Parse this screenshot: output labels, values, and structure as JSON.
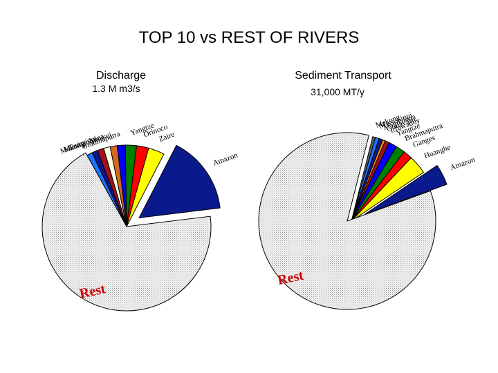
{
  "title": "TOP 10 vs REST OF RIVERS",
  "chart_data": [
    {
      "type": "pie",
      "title": "Discharge",
      "unit": "1.3 M m3/s",
      "slices": [
        {
          "label": "Amazon",
          "value": 15.5,
          "color": "#0a1a8c"
        },
        {
          "label": "Zaire",
          "value": 3.2,
          "color": "#ffff00"
        },
        {
          "label": "Orinoco",
          "value": 2.4,
          "color": "#ff0000"
        },
        {
          "label": "Yangtze",
          "value": 2.2,
          "color": "#008000"
        },
        {
          "label": "Brahmaputra",
          "value": 1.6,
          "color": "#0000ff"
        },
        {
          "label": "Yenisei",
          "value": 1.4,
          "color": "#d2691e"
        },
        {
          "label": "Lena",
          "value": 1.3,
          "color": "#fffbe0"
        },
        {
          "label": "Mississippi",
          "value": 1.3,
          "color": "#a0121b"
        },
        {
          "label": "Ganges",
          "value": 1.1,
          "color": "#0a1a8c"
        },
        {
          "label": "Mekong",
          "value": 1.1,
          "color": "#1e73ff"
        },
        {
          "label": "Rest",
          "value": 68.9,
          "color": "#ececec"
        }
      ]
    },
    {
      "type": "pie",
      "title": "Sediment Transport",
      "unit": "31,000 MT/y",
      "slices": [
        {
          "label": "Amazon",
          "value": 3.9,
          "color": "#0a1a8c"
        },
        {
          "label": "Huanghe",
          "value": 3.5,
          "color": "#ffff00"
        },
        {
          "label": "Ganges",
          "value": 1.7,
          "color": "#ff0000"
        },
        {
          "label": "Brahmaputra",
          "value": 1.7,
          "color": "#008000"
        },
        {
          "label": "Yangtze",
          "value": 1.5,
          "color": "#0000ff"
        },
        {
          "label": "Irrawaddy",
          "value": 0.8,
          "color": "#a0121b"
        },
        {
          "label": "Godavari",
          "value": 0.5,
          "color": "#ff8c00"
        },
        {
          "label": "Magdalena",
          "value": 0.7,
          "color": "#0a1a8c"
        },
        {
          "label": "Mississippi",
          "value": 0.7,
          "color": "#1e73ff"
        },
        {
          "label": "Mekong",
          "value": 0.5,
          "color": "#606060"
        },
        {
          "label": "Rest",
          "value": 84.5,
          "color": "#ececec"
        }
      ]
    }
  ]
}
